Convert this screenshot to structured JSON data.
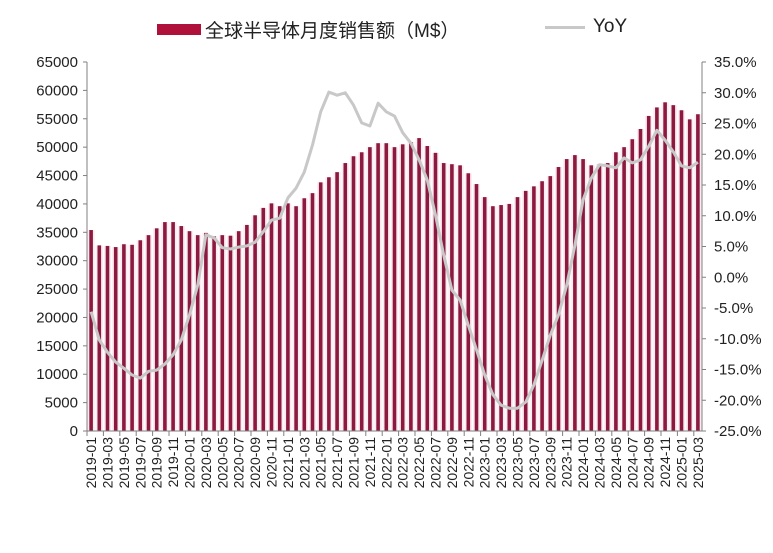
{
  "legend": {
    "bar_label": "全球半导体月度销售额（M$）",
    "line_label": "YoY"
  },
  "colors": {
    "bar": "#8B1A3E",
    "bar_fill_bg": "#FDEBF2",
    "line": "#C8C8C8",
    "axis": "#808080",
    "text": "#222222"
  },
  "chart_data": {
    "type": "bar+line",
    "title": "",
    "xlabel": "",
    "ylabel": "",
    "y2label": "",
    "legend_position": "top",
    "grid": false,
    "ylim": [
      0,
      65000
    ],
    "y_ticks": [
      0,
      5000,
      10000,
      15000,
      20000,
      25000,
      30000,
      35000,
      40000,
      45000,
      50000,
      55000,
      60000,
      65000
    ],
    "y2lim": [
      -25.0,
      35.0
    ],
    "y2_ticks": [
      "-25.0%",
      "-20.0%",
      "-15.0%",
      "-10.0%",
      "-5.0%",
      "0.0%",
      "5.0%",
      "10.0%",
      "15.0%",
      "20.0%",
      "25.0%",
      "30.0%",
      "35.0%"
    ],
    "x_tick_labels": [
      "2019-01",
      "2019-03",
      "2019-05",
      "2019-07",
      "2019-09",
      "2019-11",
      "2020-01",
      "2020-03",
      "2020-05",
      "2020-07",
      "2020-09",
      "2020-11",
      "2021-01",
      "2021-03",
      "2021-05",
      "2021-07",
      "2021-09",
      "2021-11",
      "2022-01",
      "2022-03",
      "2022-05",
      "2022-07",
      "2022-09",
      "2022-11",
      "2023-01",
      "2023-03",
      "2023-05",
      "2023-07",
      "2023-09",
      "2023-11",
      "2024-01",
      "2024-03",
      "2024-05",
      "2024-07",
      "2024-09",
      "2024-11",
      "2025-01",
      "2025-03"
    ],
    "categories": [
      "2019-01",
      "2019-02",
      "2019-03",
      "2019-04",
      "2019-05",
      "2019-06",
      "2019-07",
      "2019-08",
      "2019-09",
      "2019-10",
      "2019-11",
      "2019-12",
      "2020-01",
      "2020-02",
      "2020-03",
      "2020-04",
      "2020-05",
      "2020-06",
      "2020-07",
      "2020-08",
      "2020-09",
      "2020-10",
      "2020-11",
      "2020-12",
      "2021-01",
      "2021-02",
      "2021-03",
      "2021-04",
      "2021-05",
      "2021-06",
      "2021-07",
      "2021-08",
      "2021-09",
      "2021-10",
      "2021-11",
      "2021-12",
      "2022-01",
      "2022-02",
      "2022-03",
      "2022-04",
      "2022-05",
      "2022-06",
      "2022-07",
      "2022-08",
      "2022-09",
      "2022-10",
      "2022-11",
      "2022-12",
      "2023-01",
      "2023-02",
      "2023-03",
      "2023-04",
      "2023-05",
      "2023-06",
      "2023-07",
      "2023-08",
      "2023-09",
      "2023-10",
      "2023-11",
      "2023-12",
      "2024-01",
      "2024-02",
      "2024-03",
      "2024-04",
      "2024-05",
      "2024-06",
      "2024-07",
      "2024-08",
      "2024-09",
      "2024-10",
      "2024-11",
      "2024-12",
      "2025-01",
      "2025-02",
      "2025-03"
    ],
    "series": [
      {
        "name": "全球半导体月度销售额（M$）",
        "type": "bar",
        "axis": "left",
        "values": [
          35400,
          32700,
          32600,
          32400,
          32900,
          32800,
          33600,
          34500,
          35700,
          36800,
          36800,
          36100,
          35200,
          34500,
          34900,
          34300,
          34500,
          34400,
          35200,
          36300,
          38000,
          39300,
          40100,
          39600,
          40100,
          39600,
          41000,
          41900,
          43800,
          44700,
          45600,
          47200,
          48400,
          49100,
          50000,
          50700,
          50700,
          50000,
          50500,
          50900,
          51600,
          50200,
          49000,
          47200,
          47000,
          46800,
          45400,
          43500,
          41200,
          39600,
          39800,
          40000,
          41200,
          42300,
          43100,
          44000,
          44900,
          46500,
          47900,
          48600,
          47900,
          46800,
          47000,
          47200,
          49100,
          50000,
          51400,
          53200,
          55500,
          57000,
          57900,
          57400,
          56500,
          54900,
          55800
        ]
      },
      {
        "name": "YoY",
        "type": "line",
        "axis": "right",
        "unit": "%",
        "values": [
          -5.6,
          -10.2,
          -12.2,
          -13.8,
          -14.8,
          -15.9,
          -16.4,
          -15.3,
          -15.1,
          -14.1,
          -12.6,
          -10.2,
          -6.1,
          -1.3,
          6.9,
          6.4,
          4.8,
          4.6,
          4.9,
          5.1,
          5.7,
          7.4,
          9.3,
          9.6,
          12.9,
          14.5,
          17.1,
          21.5,
          26.9,
          30.1,
          29.6,
          30.0,
          28.0,
          25.1,
          24.6,
          28.3,
          26.9,
          26.2,
          23.5,
          21.8,
          19.1,
          15.8,
          10.1,
          3.6,
          -2.1,
          -3.7,
          -7.8,
          -11.8,
          -15.9,
          -19.1,
          -20.8,
          -21.3,
          -21.3,
          -20.3,
          -17.5,
          -13.5,
          -9.4,
          -6.1,
          -1.3,
          5.2,
          12.6,
          16.1,
          18.3,
          18.1,
          17.8,
          19.4,
          18.6,
          19.1,
          21.3,
          23.9,
          22.3,
          20.4,
          18.1,
          17.8,
          18.7
        ]
      }
    ]
  }
}
